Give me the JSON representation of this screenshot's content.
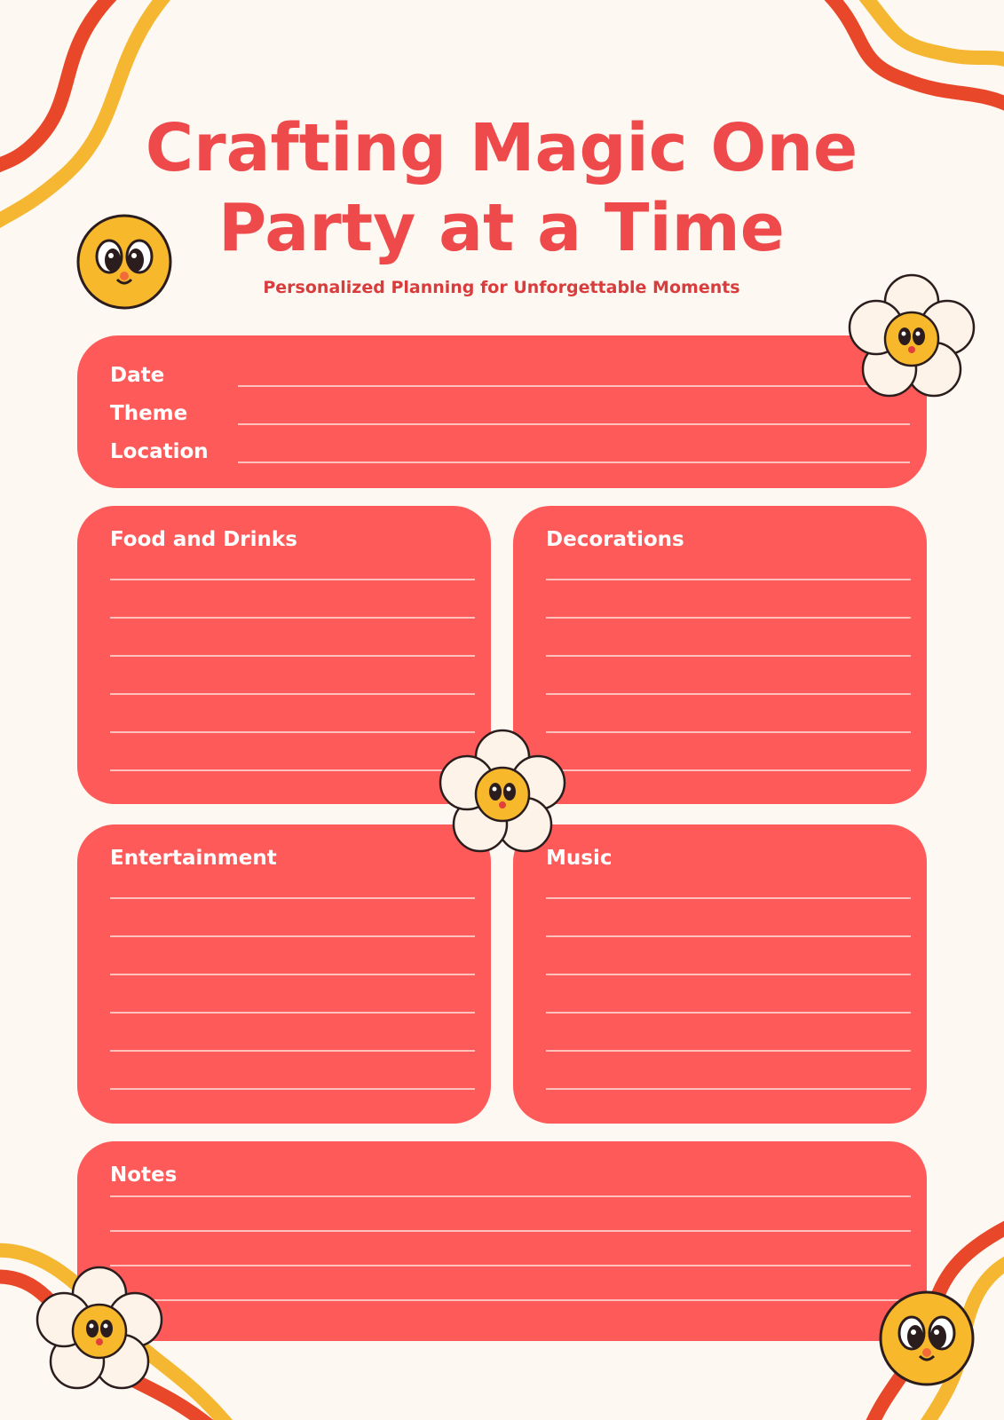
{
  "header": {
    "title_lines": [
      "Crafting Magic One",
      "Party at a Time"
    ],
    "subtitle": "Personalized Planning for Unforgettable Moments"
  },
  "details": {
    "fields": [
      "Date",
      "Theme",
      "Location"
    ]
  },
  "sections": [
    {
      "title": "Food and Drinks"
    },
    {
      "title": "Decorations"
    },
    {
      "title": "Entertainment"
    },
    {
      "title": "Music"
    },
    {
      "title": "Notes"
    }
  ]
}
